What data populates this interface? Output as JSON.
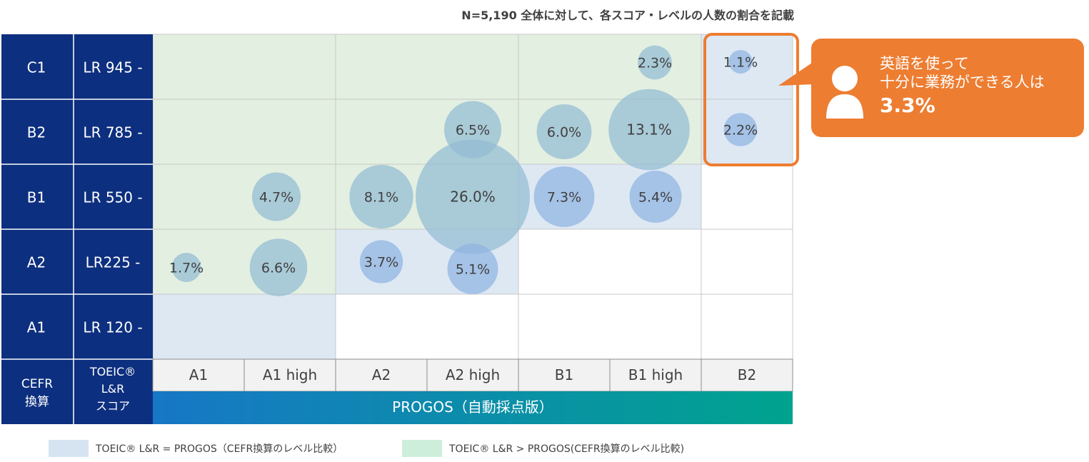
{
  "note": "N=5,190  全体に対して、各スコア・レベルの人数の割合を記載",
  "chart_data": {
    "type": "scatter",
    "subtype": "bubble-matrix",
    "x_categories": [
      "A1",
      "A1 high",
      "A2",
      "A2 high",
      "B1",
      "B1 high",
      "B2"
    ],
    "y_cefr": [
      "C1",
      "B2",
      "B1",
      "A2",
      "A1"
    ],
    "y_toeic": [
      "LR 945 -",
      "LR 785 -",
      "LR 550 -",
      "LR225 -",
      "LR 120 -"
    ],
    "corner_left": [
      "CEFR",
      "換算"
    ],
    "corner_right": [
      "TOEIC®",
      "L&R",
      "スコア"
    ],
    "x_axis_title": "PROGOS（自動採点版）",
    "points": [
      {
        "x": "B1 high",
        "y": "C1",
        "value": 2.3,
        "label": "2.3%"
      },
      {
        "x": "B2",
        "y": "C1",
        "value": 1.1,
        "label": "1.1%"
      },
      {
        "x": "A2 high",
        "y": "B2",
        "value": 6.5,
        "label": "6.5%"
      },
      {
        "x": "B1",
        "y": "B2",
        "value": 6.0,
        "label": "6.0%"
      },
      {
        "x": "B1 high",
        "y": "B2",
        "value": 13.1,
        "label": "13.1%"
      },
      {
        "x": "B2",
        "y": "B2",
        "value": 2.2,
        "label": "2.2%"
      },
      {
        "x": "A1 high",
        "y": "B1",
        "value": 4.7,
        "label": "4.7%"
      },
      {
        "x": "A2",
        "y": "B1",
        "value": 8.1,
        "label": "8.1%"
      },
      {
        "x": "A2 high",
        "y": "B1",
        "value": 26.0,
        "label": "26.0%"
      },
      {
        "x": "B1",
        "y": "B1",
        "value": 7.3,
        "label": "7.3%"
      },
      {
        "x": "B1 high",
        "y": "B1",
        "value": 5.4,
        "label": "5.4%"
      },
      {
        "x": "A1",
        "y": "A2",
        "value": 1.7,
        "label": "1.7%"
      },
      {
        "x": "A1 high",
        "y": "A2",
        "value": 6.6,
        "label": "6.6%"
      },
      {
        "x": "A2",
        "y": "A2",
        "value": 3.7,
        "label": "3.7%"
      },
      {
        "x": "A2 high",
        "y": "A2",
        "value": 5.1,
        "label": "5.1%"
      }
    ],
    "colors": {
      "header_blue": "#0d2f7f",
      "equal_zone": "#dde8f3",
      "greater_zone": "#e3efe1",
      "bubble_green_zone": "#93bbd2",
      "bubble_blue_zone": "#8fb3e2",
      "accent_orange": "#ed7d31",
      "axis_gradient_start": "#1777c6",
      "axis_gradient_end": "#00a38e"
    }
  },
  "callout": {
    "line1": "英語を使って",
    "line2": "十分に業務ができる人は",
    "value": "3.3%"
  },
  "legend": [
    {
      "label": "TOEIC® L&R = PROGOS（CEFR換算のレベル比較）",
      "color": "#d6e4f1"
    },
    {
      "label": "TOEIC® L&R > PROGOS(CEFR換算のレベル比較)",
      "color": "#cdeedb"
    }
  ]
}
